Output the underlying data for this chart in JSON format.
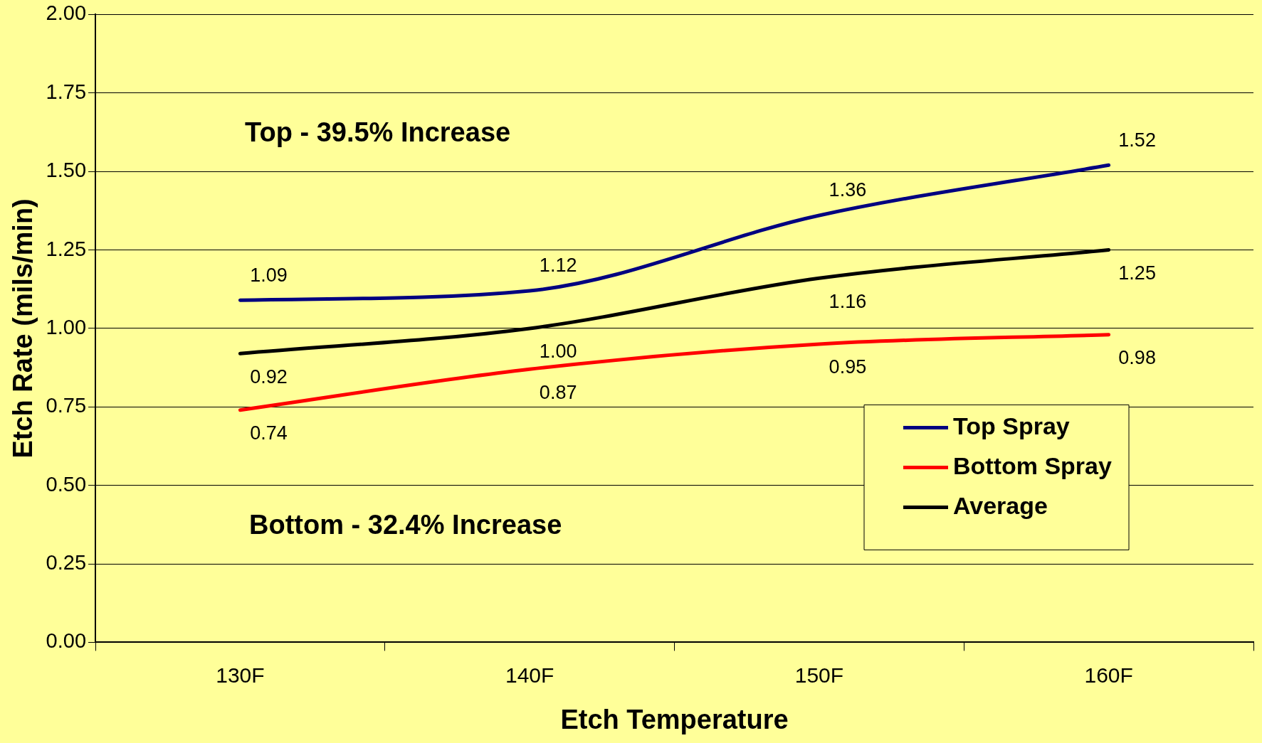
{
  "chart_data": {
    "type": "line",
    "xlabel": "Etch Temperature",
    "ylabel": "Etch Rate (mils/min)",
    "categories": [
      "130F",
      "140F",
      "150F",
      "160F"
    ],
    "series": [
      {
        "name": "Top Spray",
        "color": "#000080",
        "values": [
          1.09,
          1.12,
          1.36,
          1.52
        ],
        "value_labels": [
          "1.09",
          "1.12",
          "1.36",
          "1.52"
        ]
      },
      {
        "name": "Bottom Spray",
        "color": "#ff0000",
        "values": [
          0.74,
          0.87,
          0.95,
          0.98
        ],
        "value_labels": [
          "0.74",
          "0.87",
          "0.95",
          "0.98"
        ]
      },
      {
        "name": "Average",
        "color": "#000000",
        "values": [
          0.92,
          1.0,
          1.16,
          1.25
        ],
        "value_labels": [
          "0.92",
          "1.00",
          "1.16",
          "1.25"
        ]
      }
    ],
    "ylim": [
      0,
      2
    ],
    "yticks": [
      {
        "value": 0,
        "label": "0.00"
      },
      {
        "value": 0.25,
        "label": "0.25"
      },
      {
        "value": 0.5,
        "label": "0.50"
      },
      {
        "value": 0.75,
        "label": "0.75"
      },
      {
        "value": 1,
        "label": "1.00"
      },
      {
        "value": 1.25,
        "label": "1.25"
      },
      {
        "value": 1.5,
        "label": "1.50"
      },
      {
        "value": 1.75,
        "label": "1.75"
      },
      {
        "value": 2,
        "label": "2.00"
      }
    ],
    "grid": "y",
    "legend": "bottom right",
    "marker": "none",
    "line_style": "solid",
    "annotations": [
      "Top - 39.5% Increase",
      "Bottom - 32.4% Increase"
    ]
  }
}
